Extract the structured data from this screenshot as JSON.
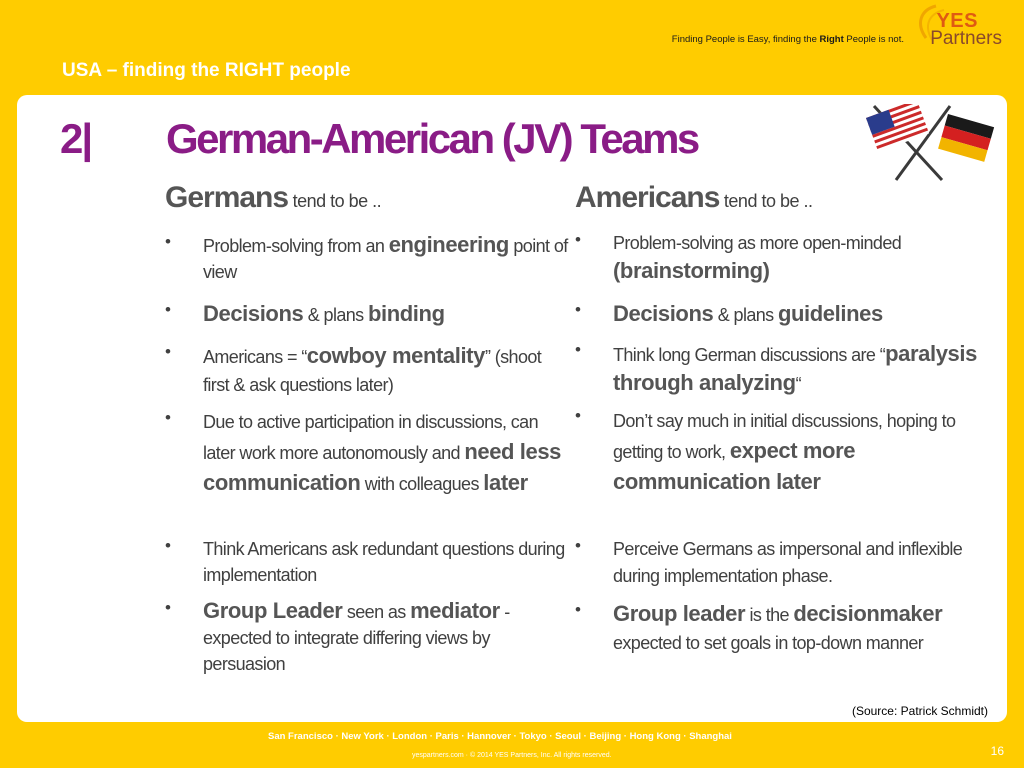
{
  "header": {
    "tagline_pre": "Finding People is Easy, finding the ",
    "tagline_bold": "Right",
    "tagline_post": " People is not.",
    "logo_yes": "YES",
    "logo_partners": "Partners",
    "section_title": "USA – finding the RIGHT people"
  },
  "slide": {
    "number": "2|",
    "title": "German-American (JV) Teams",
    "flags_icon": "us-german-flags-icon"
  },
  "germans": {
    "head_bold": "Germans",
    "head_sub": " tend to be ..",
    "bullets": [
      {
        "t1": "Problem-solving from an ",
        "b1": "engineering",
        "t2": " point of view"
      },
      {
        "b1": "Decisions",
        "t1": " & plans ",
        "b2": "binding"
      },
      {
        "t1": "Americans = “",
        "b1": "cowboy mentality",
        "t2": "” (shoot first & ask questions later)"
      },
      {
        "t1": "Due to active participation in discussions, can later work more autonomously and ",
        "b1": "need less communication",
        "t2": " with colleagues ",
        "b2": "later"
      },
      {
        "t1": "Think Americans ask redundant questions during implementation"
      },
      {
        "b1": "Group Leader",
        "t1": " seen as ",
        "b2": "mediator",
        "t2": " - expected to integrate differing views by persuasion"
      }
    ]
  },
  "americans": {
    "head_bold": "Americans",
    "head_sub": " tend to be ..",
    "bullets": [
      {
        "t1": "Problem-solving as more open-minded ",
        "b1": "(brainstorming)"
      },
      {
        "b1": "Decisions",
        "t1": " & plans ",
        "b2": "guidelines"
      },
      {
        "t1": "Think long German discussions are “",
        "b1": "paralysis through analyzing",
        "t2": "“"
      },
      {
        "t1": "Don’t say much in initial discussions, hoping to getting to work, ",
        "b1": "expect more communication later"
      },
      {
        "t1": "Perceive Germans as impersonal and inflexible during implementation phase."
      },
      {
        "b1": "Group leader",
        "t1": " is the ",
        "b2": "decisionmaker",
        "t2": " expected to set goals in top-down   manner"
      }
    ]
  },
  "footer": {
    "source": "(Source: Patrick Schmidt)",
    "cities": "San Francisco · New York · London · Paris · Hannover · Tokyo · Seoul · Beijing · Hong Kong · Shanghai",
    "copyright": "yespartners.com · © 2014 YES Partners, Inc. All rights reserved.",
    "page": "16",
    "bullet_char": "•"
  },
  "colors": {
    "background": "#FFCC00",
    "title_purple": "#8a1c86",
    "text_gray": "#404040"
  }
}
